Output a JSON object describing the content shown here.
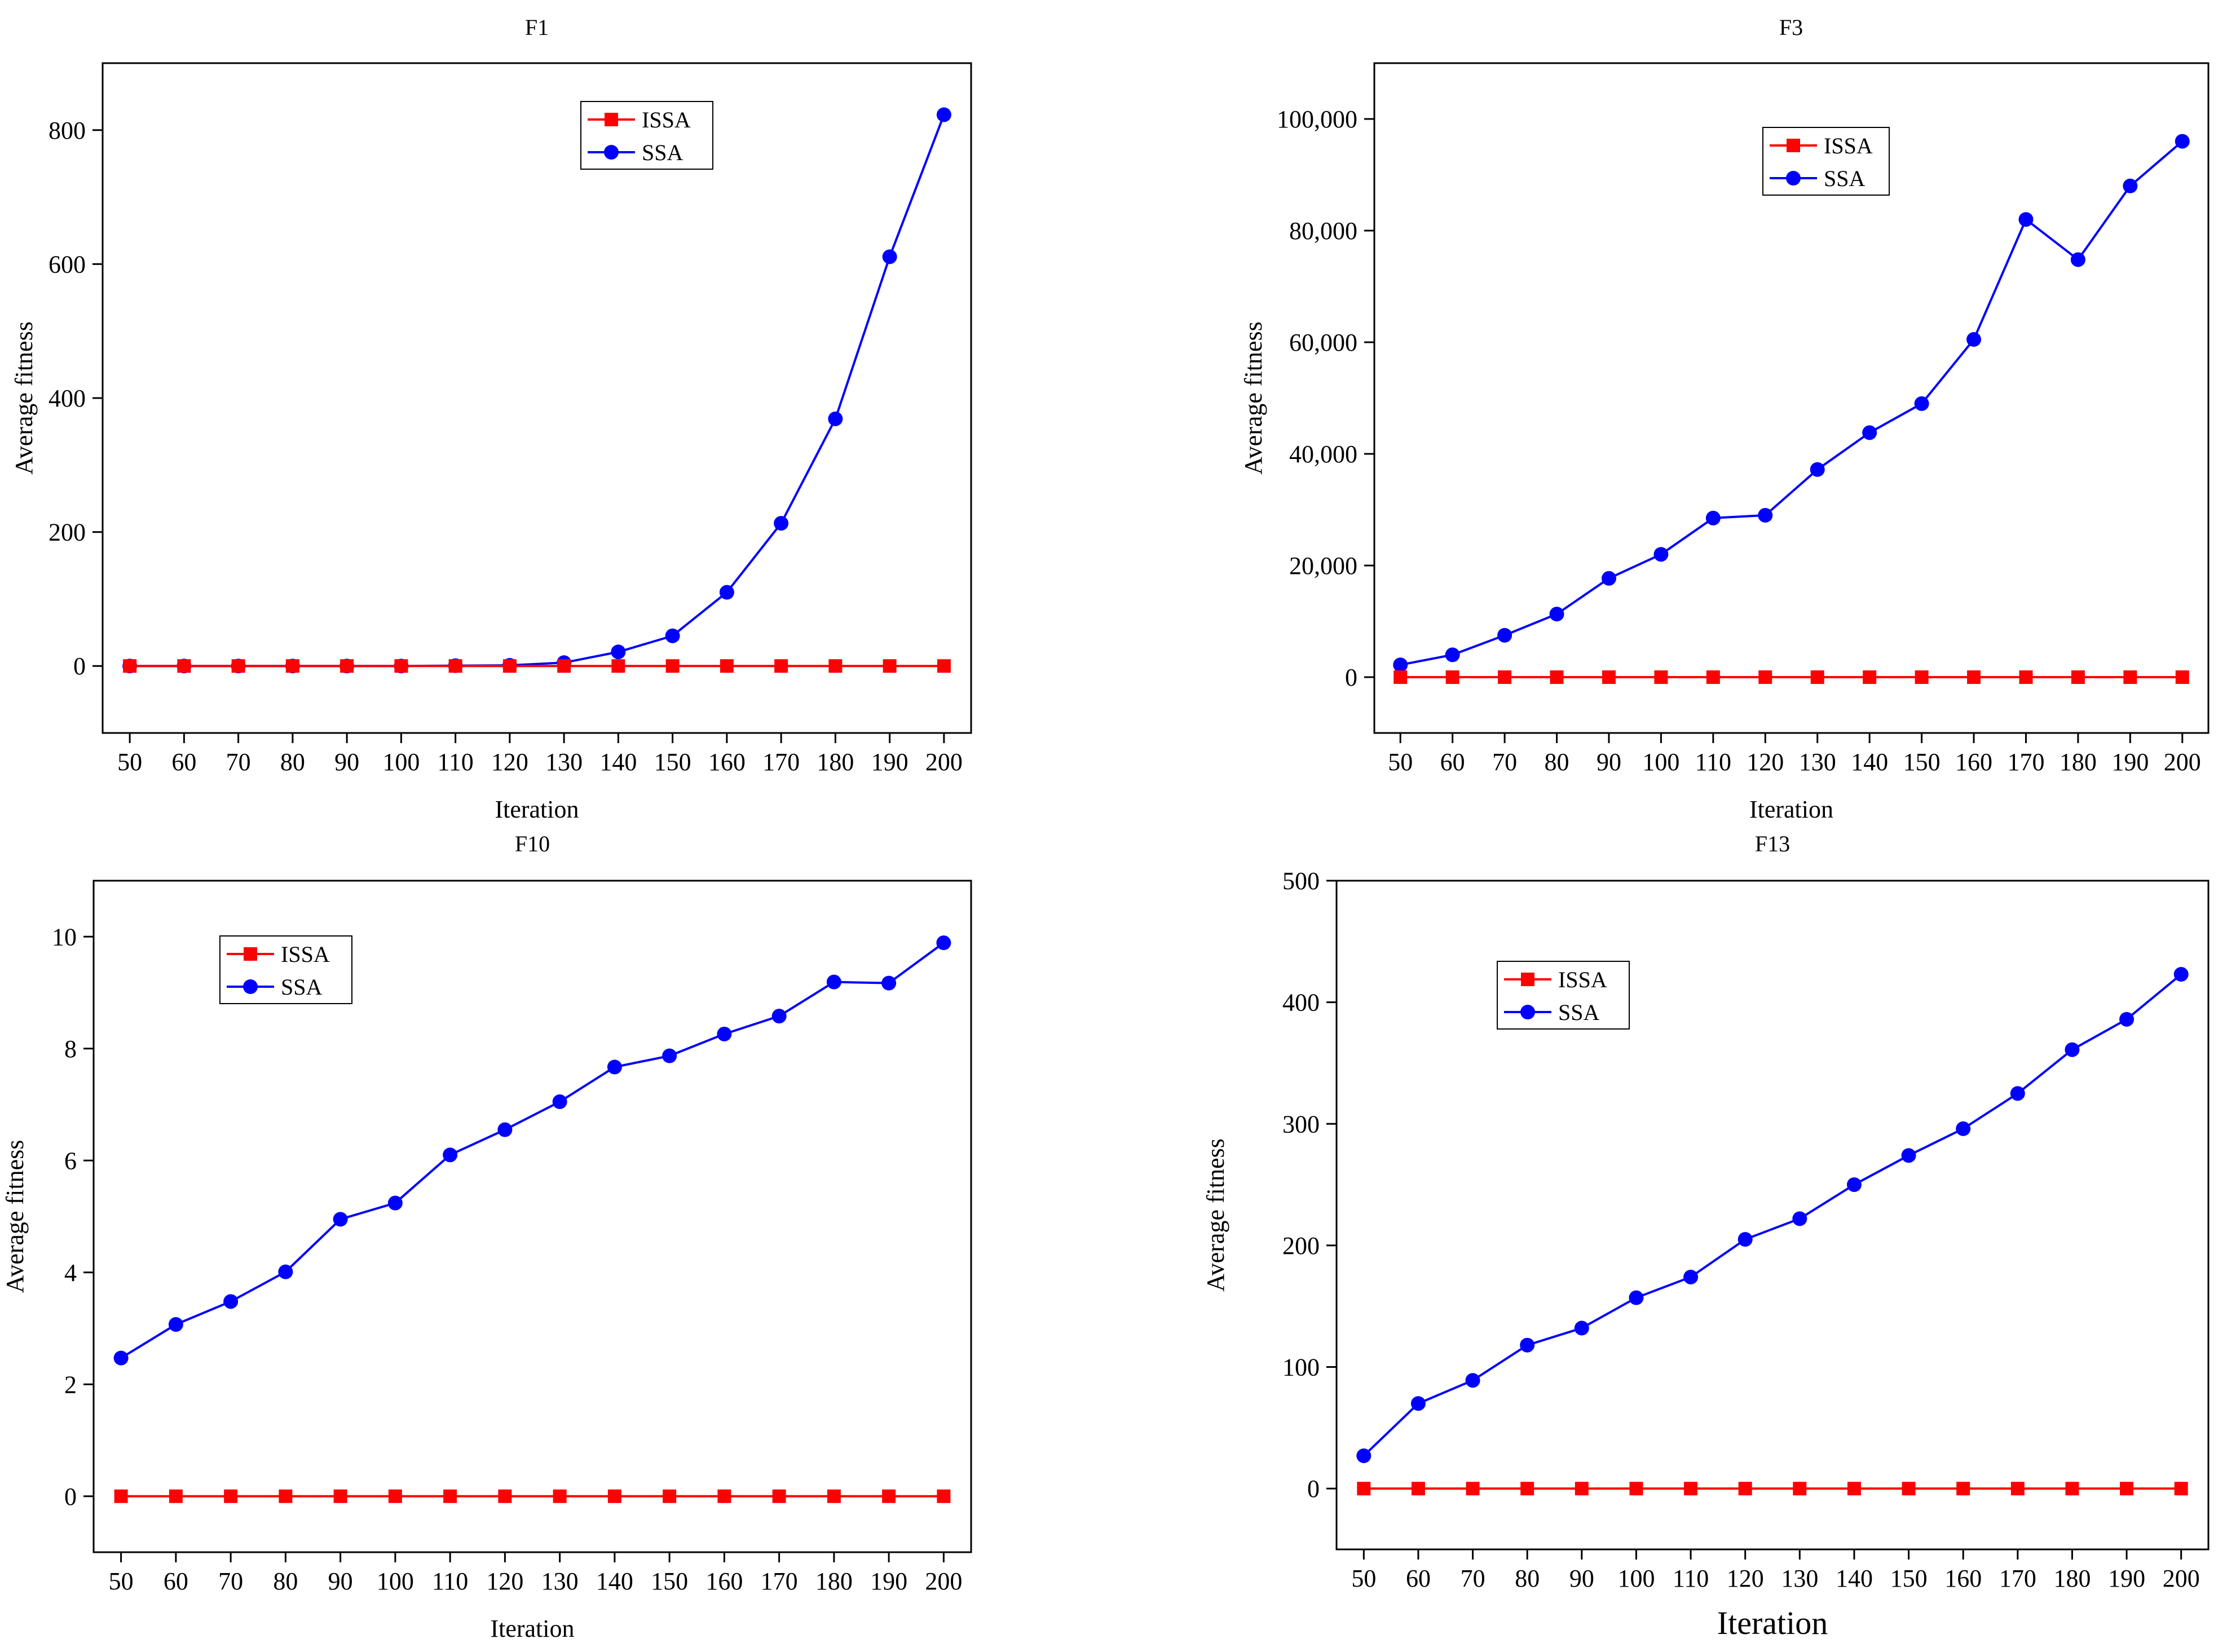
{
  "figure": {
    "colors": {
      "ISSA": "#ff0000",
      "SSA": "#0000ff"
    }
  },
  "chart_data": [
    {
      "type": "line",
      "title": "F1",
      "xlabel": "Iteration",
      "ylabel": "Average fitness",
      "x": [
        50,
        60,
        70,
        80,
        90,
        100,
        110,
        120,
        130,
        140,
        150,
        160,
        170,
        180,
        190,
        200
      ],
      "xlim": [
        45,
        205
      ],
      "ylim": [
        -100,
        900
      ],
      "yticks": [
        0,
        200,
        400,
        600,
        800
      ],
      "ytick_labels": [
        "0",
        "200",
        "400",
        "600",
        "800"
      ],
      "legend": "top-center",
      "series": [
        {
          "name": "ISSA",
          "marker": "square",
          "color": "#ff0000",
          "values": [
            0,
            0,
            0,
            0,
            0,
            0,
            0,
            0,
            0,
            0,
            0,
            0,
            0,
            0,
            0,
            0
          ]
        },
        {
          "name": "SSA",
          "marker": "circle",
          "color": "#0000ff",
          "values": [
            0,
            0,
            0,
            0,
            0,
            0,
            0.5,
            1,
            5,
            21,
            45,
            110,
            213,
            369,
            611,
            823
          ]
        }
      ]
    },
    {
      "type": "line",
      "title": "F3",
      "xlabel": "Iteration",
      "ylabel": "Average fitness",
      "x": [
        50,
        60,
        70,
        80,
        90,
        100,
        110,
        120,
        130,
        140,
        150,
        160,
        170,
        180,
        190,
        200
      ],
      "xlim": [
        45,
        205
      ],
      "ylim": [
        -10000,
        110000
      ],
      "yticks": [
        0,
        20000,
        40000,
        60000,
        80000,
        100000
      ],
      "ytick_labels": [
        "0",
        "20,000",
        "40,000",
        "60,000",
        "80,000",
        "100,000"
      ],
      "legend": "top-center",
      "series": [
        {
          "name": "ISSA",
          "marker": "square",
          "color": "#ff0000",
          "values": [
            0,
            0,
            0,
            0,
            0,
            0,
            0,
            0,
            0,
            0,
            0,
            0,
            0,
            0,
            0,
            0
          ]
        },
        {
          "name": "SSA",
          "marker": "circle",
          "color": "#0000ff",
          "values": [
            2200,
            4000,
            7500,
            11300,
            17700,
            22000,
            28500,
            29000,
            37200,
            43800,
            49000,
            60500,
            82000,
            74800,
            88000,
            96000
          ]
        }
      ]
    },
    {
      "type": "line",
      "title": "F10",
      "xlabel": "Iteration",
      "ylabel": "Average fitness",
      "x": [
        50,
        60,
        70,
        80,
        90,
        100,
        110,
        120,
        130,
        140,
        150,
        160,
        170,
        180,
        190,
        200
      ],
      "xlim": [
        45,
        205
      ],
      "ylim": [
        -1,
        11
      ],
      "yticks": [
        0,
        2,
        4,
        6,
        8,
        10
      ],
      "ytick_labels": [
        "0",
        "2",
        "4",
        "6",
        "8",
        "10"
      ],
      "legend": "top-left",
      "series": [
        {
          "name": "ISSA",
          "marker": "square",
          "color": "#ff0000",
          "values": [
            0,
            0,
            0,
            0,
            0,
            0,
            0,
            0,
            0,
            0,
            0,
            0,
            0,
            0,
            0,
            0
          ]
        },
        {
          "name": "SSA",
          "marker": "circle",
          "color": "#0000ff",
          "values": [
            2.47,
            3.07,
            3.48,
            4.01,
            4.95,
            5.24,
            6.1,
            6.55,
            7.05,
            7.67,
            7.87,
            8.26,
            8.58,
            9.19,
            9.17,
            9.89
          ]
        }
      ]
    },
    {
      "type": "line",
      "title": "F13",
      "xlabel": "Iteration",
      "ylabel": "Average fitness",
      "x": [
        50,
        60,
        70,
        80,
        90,
        100,
        110,
        120,
        130,
        140,
        150,
        160,
        170,
        180,
        190,
        200
      ],
      "xlim": [
        45,
        205
      ],
      "ylim": [
        -50,
        500
      ],
      "yticks": [
        0,
        100,
        200,
        300,
        400,
        500
      ],
      "ytick_labels": [
        "0",
        "100",
        "200",
        "300",
        "400",
        "500"
      ],
      "legend": "top-left",
      "series": [
        {
          "name": "ISSA",
          "marker": "square",
          "color": "#ff0000",
          "values": [
            0,
            0,
            0,
            0,
            0,
            0,
            0,
            0,
            0,
            0,
            0,
            0,
            0,
            0,
            0,
            0
          ]
        },
        {
          "name": "SSA",
          "marker": "circle",
          "color": "#0000ff",
          "values": [
            27,
            70,
            89,
            118,
            132,
            157,
            174,
            205,
            222,
            250,
            274,
            296,
            325,
            361,
            386,
            423
          ]
        }
      ]
    }
  ]
}
